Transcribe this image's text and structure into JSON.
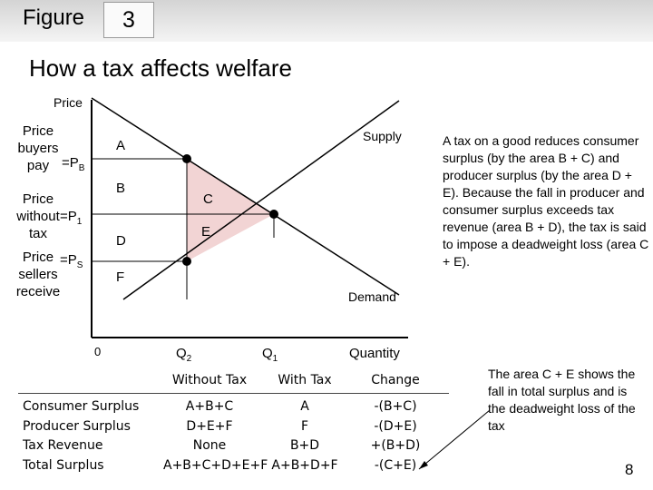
{
  "header": {
    "figure_word": "Figure",
    "figure_number": "3"
  },
  "title": "How a tax affects welfare",
  "diagram": {
    "y_axis_label": "Price",
    "x_axis_label": "Quantity",
    "origin": "0",
    "price_buyers_pay": [
      "Price",
      "buyers",
      "pay"
    ],
    "price_without_tax": [
      "Price",
      "without",
      "tax"
    ],
    "price_sellers_receive": [
      "Price",
      "sellers",
      "receive"
    ],
    "pb_label": "=P",
    "pb_sub": "B",
    "p1_label": "=P",
    "p1_sub": "1",
    "ps_label": "=P",
    "ps_sub": "S",
    "q2_label": "Q",
    "q2_sub": "2",
    "q1_label": "Q",
    "q1_sub": "1",
    "supply_label": "Supply",
    "demand_label": "Demand",
    "areas": {
      "a": "A",
      "b": "B",
      "c": "C",
      "d": "D",
      "e": "E",
      "f": "F"
    },
    "deadweight_fill": "#f2d4d4",
    "line_color": "#000000"
  },
  "explanation": "A tax on a good reduces consumer surplus (by the area B + C) and producer surplus (by the area D + E). Because the fall in producer and consumer surplus exceeds tax revenue (area B + D), the tax is said to impose a deadweight loss (area C + E).",
  "table": {
    "headers": [
      "Without Tax",
      "With Tax",
      "Change"
    ],
    "rows": [
      {
        "label": "Consumer Surplus",
        "without": "A+B+C",
        "with": "A",
        "change": "-(B+C)"
      },
      {
        "label": "Producer Surplus",
        "without": "D+E+F",
        "with": "F",
        "change": "-(D+E)"
      },
      {
        "label": "Tax Revenue",
        "without": "None",
        "with": "B+D",
        "change": "+(B+D)"
      },
      {
        "label": "Total Surplus",
        "without": "A+B+C+D+E+F",
        "with": "A+B+D+F",
        "change": "-(C+E)"
      }
    ]
  },
  "callout": "The area C + E shows the fall in total surplus and is the deadweight loss of the tax",
  "page_number": "8"
}
